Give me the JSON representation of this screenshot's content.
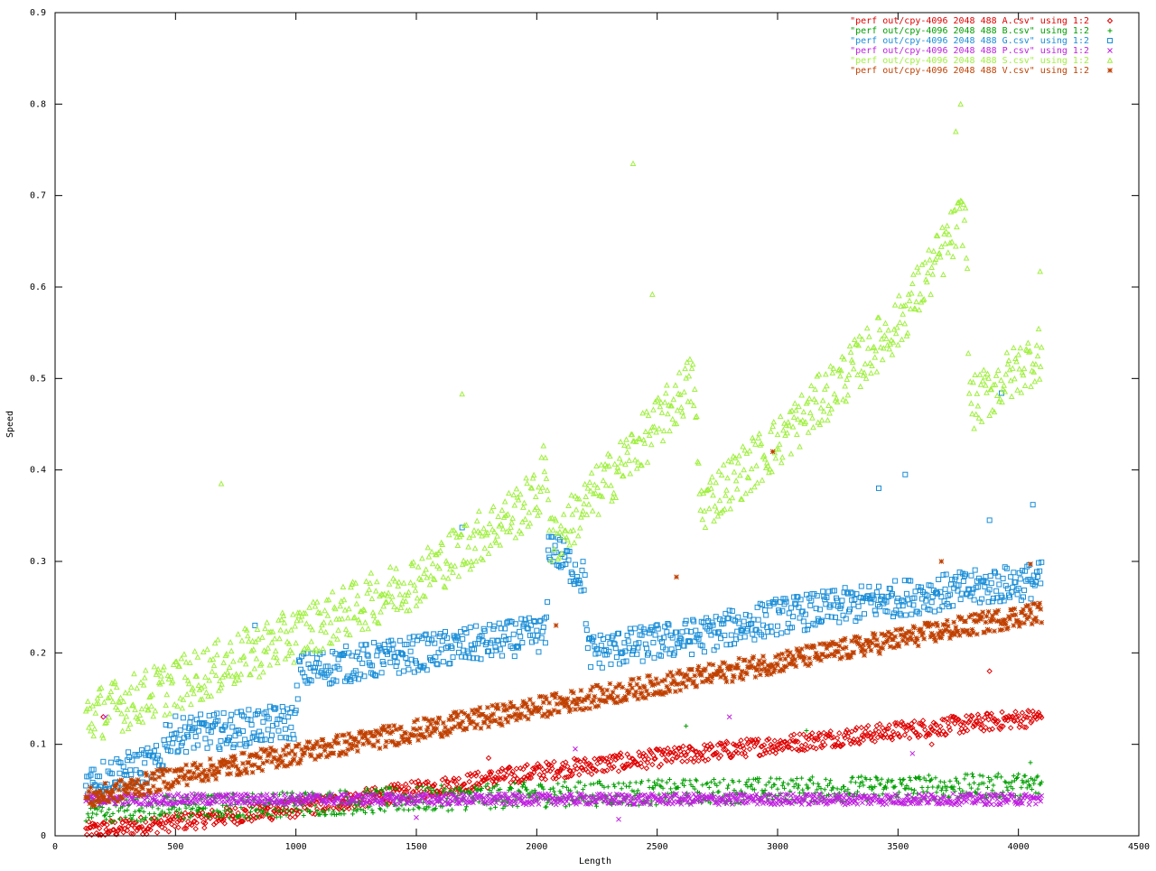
{
  "chart_data": {
    "type": "scatter",
    "title": "",
    "xlabel": "Length",
    "ylabel": "Speed",
    "xlim": [
      0,
      4500
    ],
    "ylim": [
      0,
      0.9
    ],
    "x_ticks": [
      "0",
      "500",
      "1000",
      "1500",
      "2000",
      "2500",
      "3000",
      "3500",
      "4000",
      "4500"
    ],
    "y_ticks": [
      "0",
      "0.1",
      "0.2",
      "0.3",
      "0.4",
      "0.5",
      "0.6",
      "0.7",
      "0.8",
      "0.9"
    ],
    "grid": false,
    "legend_position": "top-right",
    "x_range_sampled": [
      128,
      4096
    ],
    "series": [
      {
        "name": "\"perf out/cpy-4096 2048 488 A.csv\" using 1:2",
        "marker": "diamond",
        "color": "#e00000",
        "trend": [
          [
            128,
            0.005
          ],
          [
            500,
            0.015
          ],
          [
            1000,
            0.03
          ],
          [
            1500,
            0.05
          ],
          [
            2000,
            0.07
          ],
          [
            2500,
            0.085
          ],
          [
            3000,
            0.1
          ],
          [
            3500,
            0.115
          ],
          [
            4096,
            0.13
          ]
        ],
        "spread": 0.01,
        "outliers": [
          [
            200,
            0.13
          ],
          [
            1800,
            0.085
          ],
          [
            3880,
            0.18
          ],
          [
            3640,
            0.1
          ]
        ]
      },
      {
        "name": "\"perf out/cpy-4096 2048 488 B.csv\" using 1:2",
        "marker": "plus",
        "color": "#00a000",
        "trend": [
          [
            128,
            0.028
          ],
          [
            1000,
            0.035
          ],
          [
            2000,
            0.045
          ],
          [
            3000,
            0.05
          ],
          [
            4096,
            0.055
          ]
        ],
        "spread": 0.014,
        "outliers": [
          [
            2620,
            0.12
          ],
          [
            3120,
            0.115
          ],
          [
            4050,
            0.08
          ]
        ]
      },
      {
        "name": "\"perf out/cpy-4096 2048 488 G.csv\" using 1:2",
        "marker": "square",
        "color": "#1a8ed8",
        "trend": [
          [
            128,
            0.06
          ],
          [
            300,
            0.072
          ],
          [
            440,
            0.08
          ],
          [
            460,
            0.11
          ],
          [
            700,
            0.115
          ],
          [
            1000,
            0.125
          ],
          [
            1010,
            0.18
          ],
          [
            1400,
            0.195
          ],
          [
            2000,
            0.22
          ],
          [
            2040,
            0.22
          ],
          [
            2050,
            0.32
          ],
          [
            2200,
            0.28
          ],
          [
            2210,
            0.2
          ],
          [
            2700,
            0.22
          ],
          [
            3000,
            0.24
          ],
          [
            3500,
            0.26
          ],
          [
            4096,
            0.28
          ]
        ],
        "spread": 0.02,
        "outliers": [
          [
            1690,
            0.337
          ],
          [
            2050,
            0.327
          ],
          [
            3420,
            0.38
          ],
          [
            3530,
            0.395
          ],
          [
            3880,
            0.345
          ],
          [
            4060,
            0.362
          ],
          [
            3930,
            0.484
          ],
          [
            830,
            0.23
          ]
        ]
      },
      {
        "name": "\"perf out/cpy-4096 2048 488 P.csv\" using 1:2",
        "marker": "cross",
        "color": "#c020e0",
        "trend": [
          [
            128,
            0.04
          ],
          [
            4096,
            0.04
          ]
        ],
        "spread": 0.006,
        "outliers": [
          [
            210,
            0.13
          ],
          [
            2160,
            0.095
          ],
          [
            2800,
            0.13
          ],
          [
            3560,
            0.09
          ],
          [
            1500,
            0.02
          ],
          [
            2340,
            0.018
          ]
        ]
      },
      {
        "name": "\"perf out/cpy-4096 2048 488 S.csv\" using 1:2",
        "marker": "triangle",
        "color": "#a0f040",
        "trend": [
          [
            128,
            0.13
          ],
          [
            500,
            0.165
          ],
          [
            1000,
            0.22
          ],
          [
            1500,
            0.28
          ],
          [
            2000,
            0.37
          ],
          [
            2040,
            0.41
          ],
          [
            2060,
            0.32
          ],
          [
            2500,
            0.45
          ],
          [
            2650,
            0.5
          ],
          [
            2680,
            0.36
          ],
          [
            3000,
            0.43
          ],
          [
            3500,
            0.56
          ],
          [
            3780,
            0.68
          ],
          [
            3800,
            0.47
          ],
          [
            4096,
            0.53
          ]
        ],
        "spread": 0.03,
        "outliers": [
          [
            2400,
            0.735
          ],
          [
            3760,
            0.8
          ],
          [
            3740,
            0.77
          ],
          [
            690,
            0.385
          ],
          [
            4090,
            0.617
          ],
          [
            1690,
            0.483
          ],
          [
            2480,
            0.592
          ]
        ]
      },
      {
        "name": "\"perf out/cpy-4096 2048 488 V.csv\" using 1:2",
        "marker": "star",
        "color": "#c04000",
        "trend": [
          [
            128,
            0.04
          ],
          [
            500,
            0.065
          ],
          [
            1000,
            0.09
          ],
          [
            1500,
            0.115
          ],
          [
            2000,
            0.14
          ],
          [
            2500,
            0.165
          ],
          [
            3000,
            0.19
          ],
          [
            3500,
            0.215
          ],
          [
            4096,
            0.245
          ]
        ],
        "spread": 0.012,
        "outliers": [
          [
            2980,
            0.42
          ],
          [
            2580,
            0.283
          ],
          [
            3680,
            0.3
          ],
          [
            4050,
            0.297
          ],
          [
            2080,
            0.23
          ]
        ]
      }
    ]
  }
}
